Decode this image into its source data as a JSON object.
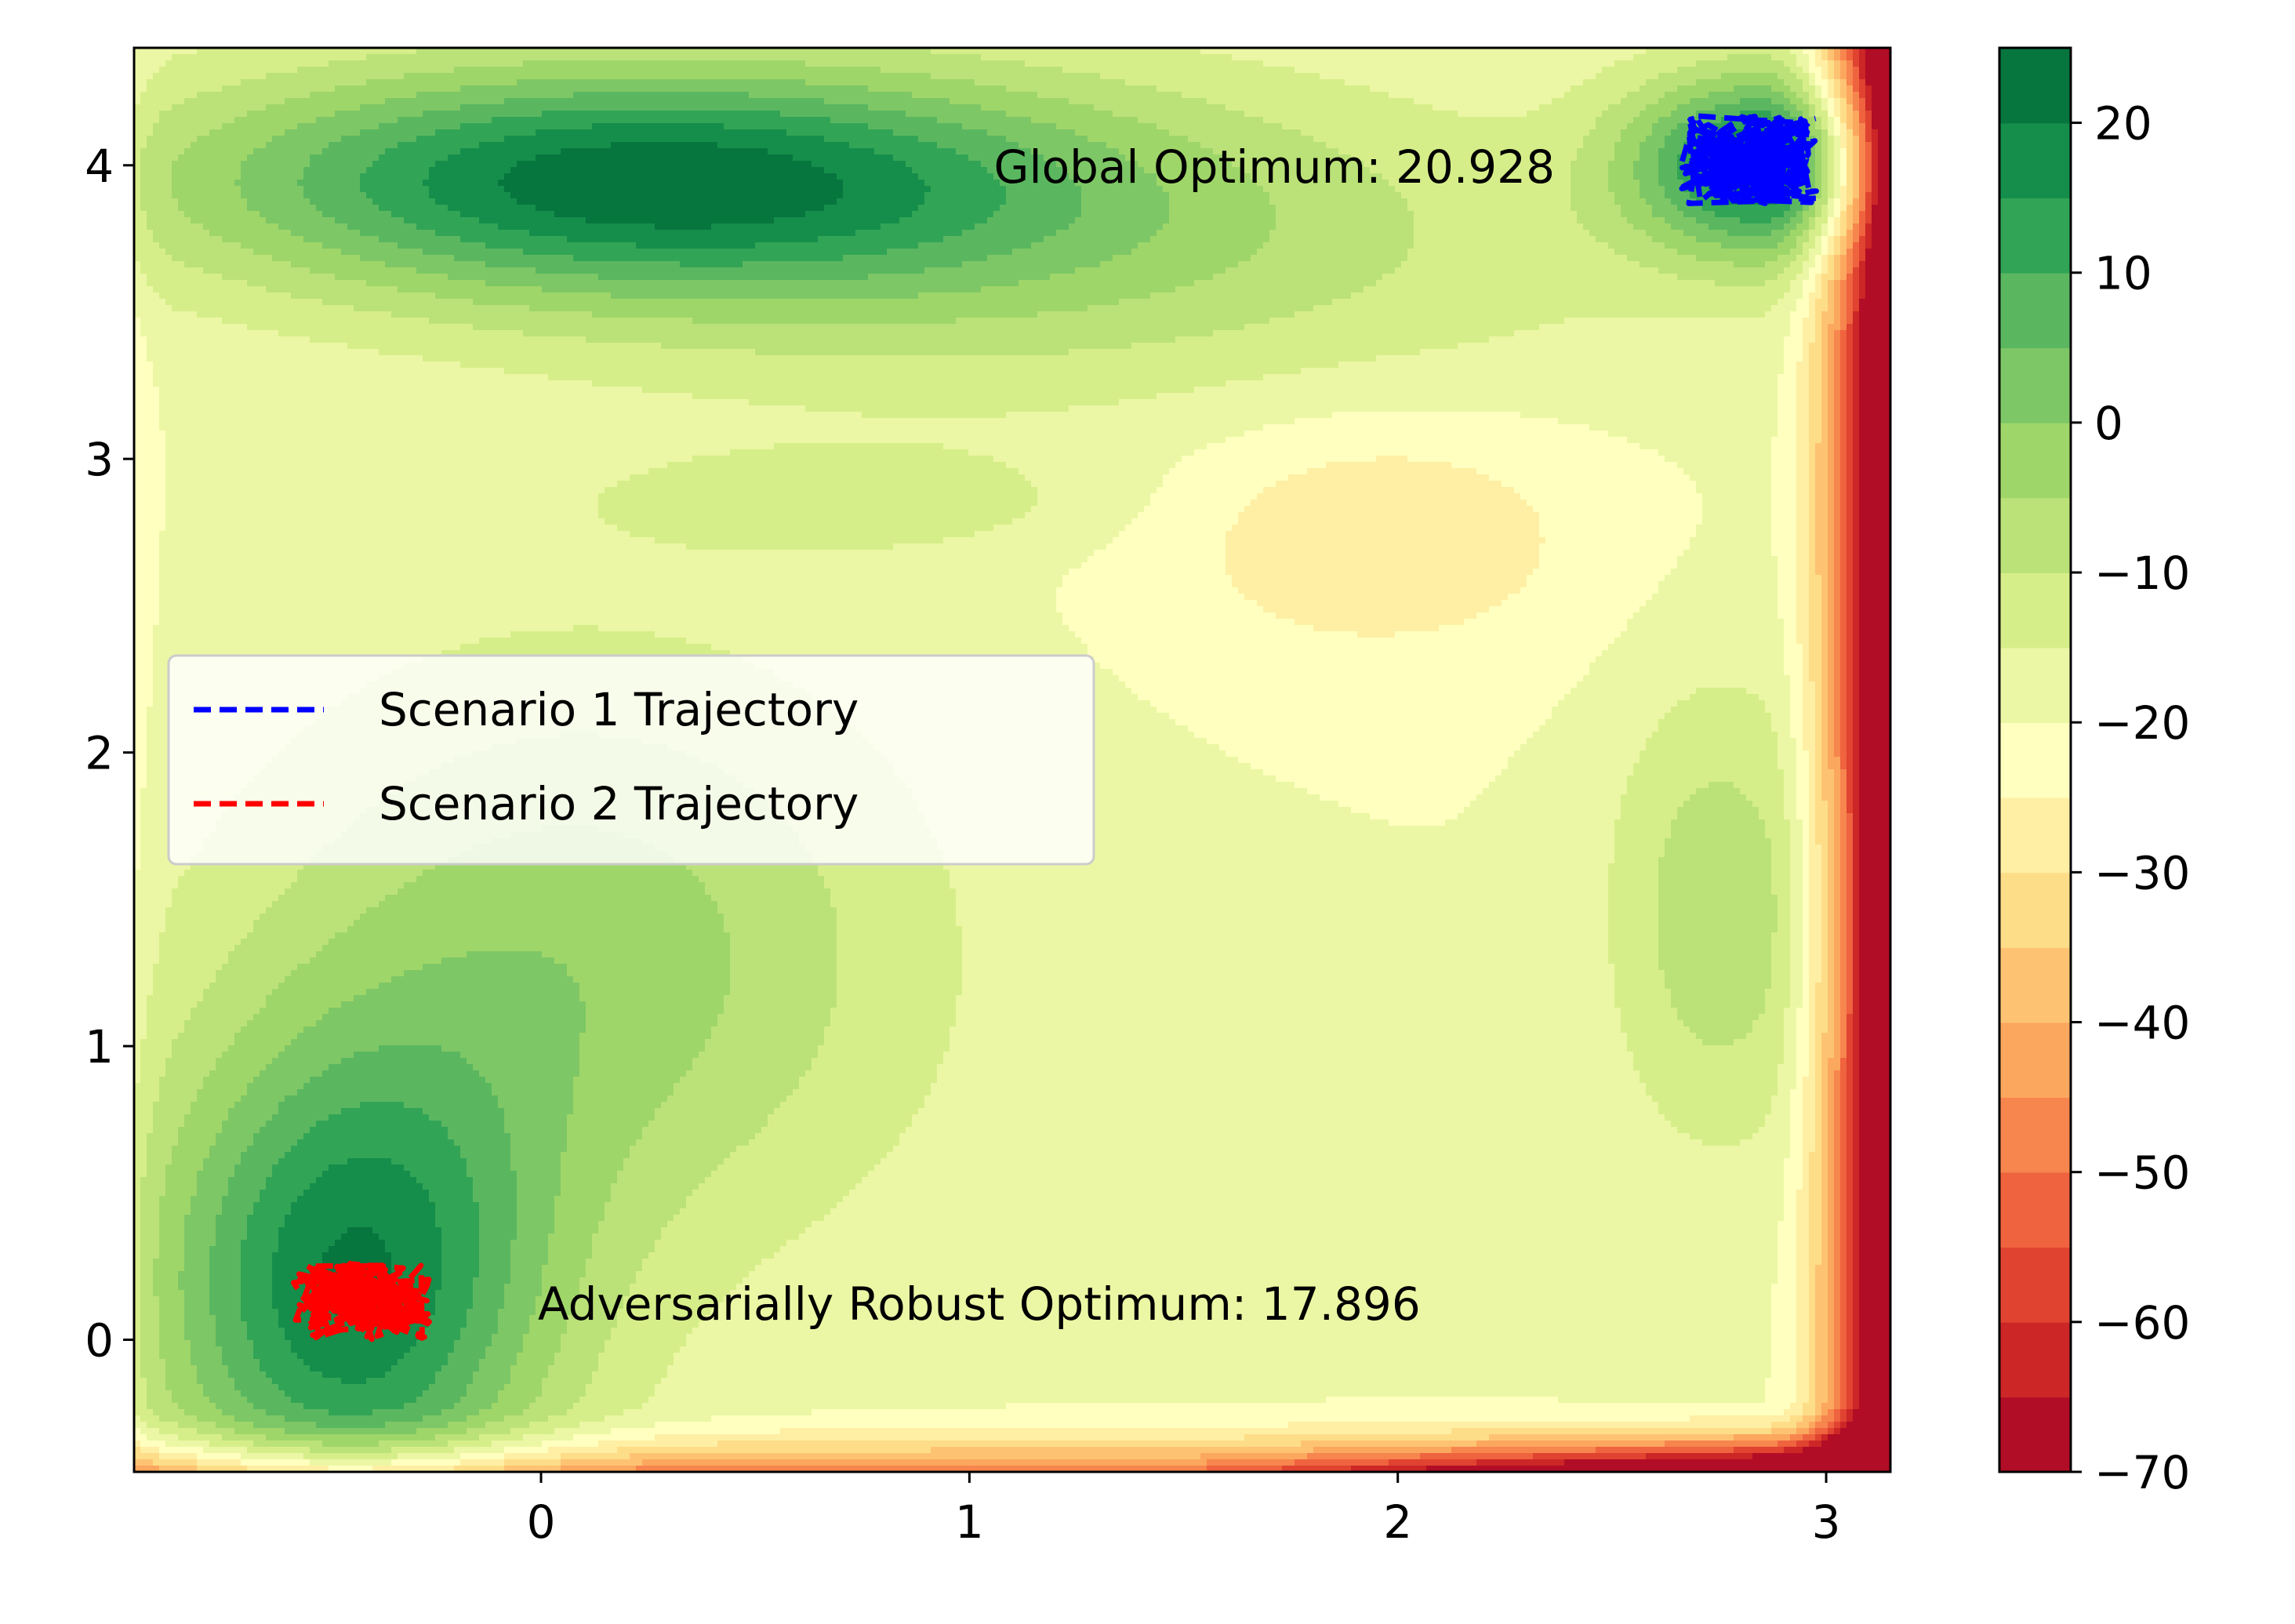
{
  "chart_data": {
    "type": "contour",
    "title": "",
    "xlabel": "",
    "ylabel": "",
    "xlim": [
      -0.95,
      3.15
    ],
    "ylim": [
      -0.45,
      4.4
    ],
    "x_ticks": [
      0,
      1,
      2,
      3
    ],
    "y_ticks": [
      0,
      1,
      2,
      3,
      4
    ],
    "colormap": "RdYlGn",
    "colorbar": {
      "range": [
        -70,
        25
      ],
      "levels": [
        -70,
        -65,
        -60,
        -55,
        -50,
        -45,
        -40,
        -35,
        -30,
        -25,
        -20,
        -15,
        -10,
        -5,
        0,
        5,
        10,
        15,
        20,
        25
      ],
      "ticks": [
        -70,
        -60,
        -50,
        -40,
        -30,
        -20,
        -10,
        0,
        10,
        20
      ],
      "tick_labels": [
        "−70",
        "−60",
        "−50",
        "−40",
        "−30",
        "−20",
        "−10",
        "0",
        "10",
        "20"
      ]
    },
    "field_extrema": [
      {
        "x": -0.5,
        "y": 0.1,
        "value": 17.896
      },
      {
        "x": 0.2,
        "y": 3.95,
        "value": 19
      },
      {
        "x": 2.85,
        "y": 4.0,
        "value": 20.928
      },
      {
        "x": 1.95,
        "y": 2.75,
        "value": -27
      },
      {
        "x": 2.75,
        "y": 1.5,
        "value": -8
      }
    ],
    "series": [
      {
        "name": "Scenario 1 Trajectory",
        "color": "#0000ff",
        "style": "dashed",
        "center": [
          2.82,
          4.02
        ],
        "spread": [
          0.16,
          0.15
        ]
      },
      {
        "name": "Scenario 2 Trajectory",
        "color": "#ff0000",
        "style": "dashed",
        "center": [
          -0.42,
          0.13
        ],
        "spread": [
          0.16,
          0.13
        ]
      }
    ],
    "annotations": [
      {
        "text": "Global Optimum: 20.928",
        "x": 2.82,
        "y": 4.0
      },
      {
        "text": "Adversarially Robust Optimum: 17.896",
        "x": -0.42,
        "y": 0.13
      }
    ],
    "legend": {
      "placement": "center-left"
    }
  }
}
